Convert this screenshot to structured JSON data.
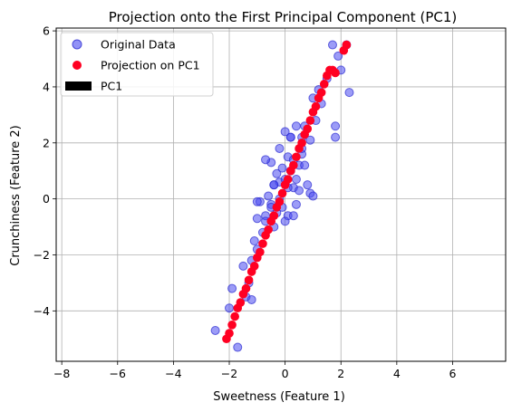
{
  "chart_data": {
    "type": "scatter",
    "title": "Projection onto the First Principal Component (PC1)",
    "xlabel": "Sweetness (Feature 1)",
    "ylabel": "Crunchiness (Feature 2)",
    "xlim": [
      -8.2,
      7.9
    ],
    "ylim": [
      -5.8,
      6.1
    ],
    "xticks": [
      -8,
      -6,
      -4,
      -2,
      0,
      2,
      4,
      6
    ],
    "yticks": [
      -4,
      -2,
      0,
      2,
      4,
      6
    ],
    "tick_labels_x": [
      "−8",
      "−6",
      "−4",
      "−2",
      "0",
      "2",
      "4",
      "6"
    ],
    "tick_labels_y": [
      "−4",
      "−2",
      "0",
      "2",
      "4",
      "6"
    ],
    "grid": true,
    "legend_position": "top-left",
    "legend": [
      "Original Data",
      "Projection on PC1",
      "PC1"
    ],
    "colors": {
      "original": "#4a4af0",
      "projection": "#ff0022",
      "pc1": "#000000"
    },
    "series": [
      {
        "name": "Original Data",
        "x": [
          -2.5,
          -2.0,
          -1.9,
          -1.7,
          -1.5,
          -1.4,
          -1.3,
          -1.2,
          -1.2,
          -1.1,
          -1.0,
          -1.0,
          -0.9,
          -0.8,
          -0.7,
          -0.7,
          -0.6,
          -0.5,
          -0.5,
          -0.4,
          -0.4,
          -0.3,
          -0.3,
          -0.2,
          -0.2,
          -0.1,
          -0.1,
          0.0,
          0.0,
          0.1,
          0.1,
          0.2,
          0.2,
          0.3,
          0.3,
          0.4,
          0.4,
          0.5,
          0.5,
          0.6,
          0.6,
          0.7,
          0.8,
          0.9,
          1.0,
          1.1,
          1.2,
          1.3,
          1.5,
          1.7,
          1.8,
          1.8,
          1.9,
          2.0,
          2.2,
          2.3,
          -0.2,
          0.0,
          0.3,
          -0.7,
          0.9,
          -0.4,
          0.4,
          0.6,
          1.0,
          -0.5,
          0.2,
          -1.0,
          0.7,
          0.1
        ],
        "y": [
          -4.7,
          -3.9,
          -3.2,
          -5.3,
          -2.4,
          -3.5,
          -3.0,
          -2.2,
          -3.6,
          -1.5,
          -1.8,
          -0.7,
          -0.1,
          -1.2,
          -0.6,
          -0.8,
          0.1,
          -0.2,
          1.3,
          -1.0,
          0.5,
          0.9,
          -0.5,
          1.8,
          0.6,
          1.1,
          -0.3,
          2.4,
          0.7,
          1.5,
          -0.6,
          2.2,
          1.0,
          0.4,
          1.4,
          2.6,
          -0.2,
          1.2,
          0.3,
          2.2,
          1.6,
          2.6,
          0.5,
          2.1,
          3.6,
          2.8,
          3.9,
          3.4,
          4.3,
          5.5,
          2.6,
          2.2,
          5.1,
          4.6,
          5.5,
          3.8,
          0.0,
          -0.8,
          -0.6,
          1.4,
          0.2,
          0.5,
          0.7,
          1.8,
          0.1,
          -0.3,
          2.2,
          -0.1,
          1.2,
          0.4
        ]
      },
      {
        "name": "Projection on PC1",
        "x": [
          -2.1,
          -2.0,
          -1.9,
          -1.8,
          -1.7,
          -1.6,
          -1.5,
          -1.4,
          -1.3,
          -1.2,
          -1.1,
          -1.0,
          -0.9,
          -0.8,
          -0.7,
          -0.6,
          -0.5,
          -0.4,
          -0.3,
          -0.2,
          -0.1,
          0.0,
          0.1,
          0.2,
          0.3,
          0.4,
          0.5,
          0.6,
          0.7,
          0.8,
          0.9,
          1.0,
          1.1,
          1.2,
          1.3,
          1.4,
          1.5,
          1.6,
          1.7,
          1.8,
          2.1,
          2.2
        ],
        "y": [
          -5.0,
          -4.8,
          -4.5,
          -4.2,
          -3.9,
          -3.7,
          -3.4,
          -3.2,
          -2.9,
          -2.6,
          -2.4,
          -2.1,
          -1.9,
          -1.6,
          -1.3,
          -1.1,
          -0.8,
          -0.6,
          -0.3,
          -0.1,
          0.2,
          0.5,
          0.7,
          1.0,
          1.2,
          1.5,
          1.8,
          2.0,
          2.3,
          2.5,
          2.8,
          3.1,
          3.3,
          3.6,
          3.8,
          4.1,
          4.4,
          4.6,
          4.6,
          4.5,
          5.3,
          5.5
        ]
      }
    ]
  }
}
